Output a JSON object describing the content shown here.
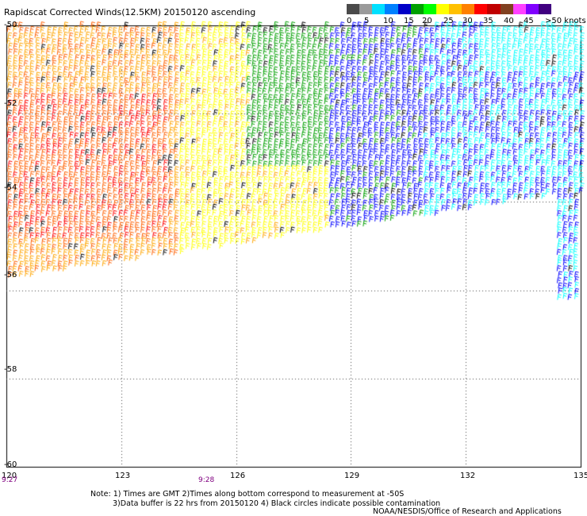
{
  "title": "Rapidscat Corrected Winds(12.5KM) 20150120 ascending",
  "legend": {
    "labels": [
      "0",
      "5",
      "10",
      "15",
      "20",
      "25",
      "30",
      "35",
      "40",
      "45",
      ">50 knots"
    ],
    "colors": [
      "#4a4a4a",
      "#9a9a9a",
      "#00e0ff",
      "#0080ff",
      "#0000c8",
      "#00a000",
      "#00ff00",
      "#ffff00",
      "#ffc000",
      "#ff8000",
      "#ff0000",
      "#c00000",
      "#804020",
      "#ff40ff",
      "#8000ff",
      "#400080"
    ]
  },
  "lat_labels": [
    "-50",
    "-52",
    "-54",
    "-56",
    "-58",
    "-60"
  ],
  "lon_labels": [
    "120",
    "123",
    "126",
    "129",
    "132",
    "135"
  ],
  "time_labels": [
    "9:27",
    "9:28"
  ],
  "notes": {
    "line1": "Note: 1) Times are GMT 2)Times along bottom correspond to measurement at -50S",
    "line2": "3)Data buffer is 22 hrs from 20150120 4) Black circles indicate possible contamination"
  },
  "credit": "NOAA/NESDIS/Office of Research and Applications",
  "map_data": {
    "lat_range": [
      -60,
      -50
    ],
    "lon_range": [
      120,
      135
    ],
    "grid": true,
    "speed_bins_knots": [
      {
        "bin": "0-5",
        "color": "#000000"
      },
      {
        "bin": "5-10",
        "color": "#00ffff"
      },
      {
        "bin": "10-15",
        "color": "#0000ff"
      },
      {
        "bin": "15-20",
        "color": "#00a000"
      },
      {
        "bin": "20-25",
        "color": "#ffff00"
      },
      {
        "bin": "25-30",
        "color": "#ffa500"
      },
      {
        "bin": "30-35",
        "color": "#ff6000"
      },
      {
        "bin": "35-40",
        "color": "#ff0000"
      }
    ]
  }
}
